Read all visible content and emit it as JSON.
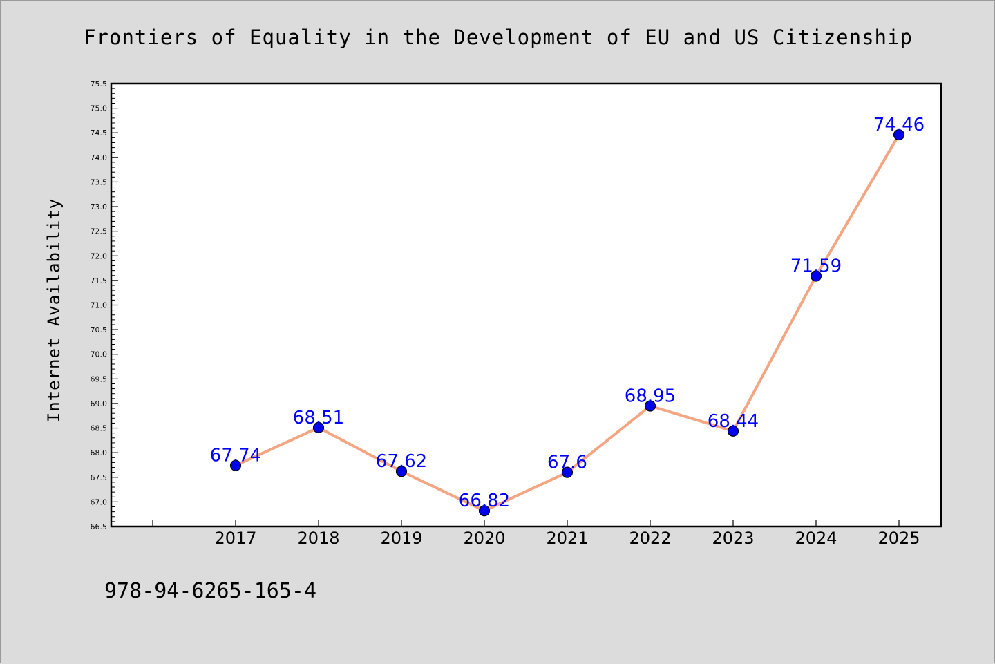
{
  "chart_data": {
    "type": "line",
    "title": "Frontiers of Equality in the Development of EU and US Citizenship",
    "xlabel": "",
    "ylabel": "Internet Availability",
    "categories": [
      "2017",
      "2018",
      "2019",
      "2020",
      "2021",
      "2022",
      "2023",
      "2024",
      "2025"
    ],
    "series": [
      {
        "values": [
          67.74,
          68.51,
          67.62,
          66.82,
          67.6,
          68.95,
          68.44,
          71.59,
          74.46
        ]
      }
    ],
    "data_labels": [
      "67.74",
      "68.51",
      "67.62",
      "66.82",
      "67.6",
      "68.95",
      "68.44",
      "71.59",
      "74.46"
    ],
    "ylim": [
      66.5,
      75.5
    ],
    "yticks": [
      "66.5",
      "67.0",
      "67.5",
      "68.0",
      "68.5",
      "69.0",
      "69.5",
      "70.0",
      "70.5",
      "71.0",
      "71.5",
      "72.0",
      "72.5",
      "73.0",
      "73.5",
      "74.0",
      "74.5",
      "75.0",
      "75.5"
    ],
    "grid": false,
    "legend": "none",
    "colors": {
      "line": "#f4a582",
      "marker": "#0000ee",
      "data_label": "#0000ff",
      "plot_bg": "#ffffff",
      "figure_bg": "#dcdcdc"
    }
  },
  "footer": {
    "isbn": "978-94-6265-165-4"
  }
}
